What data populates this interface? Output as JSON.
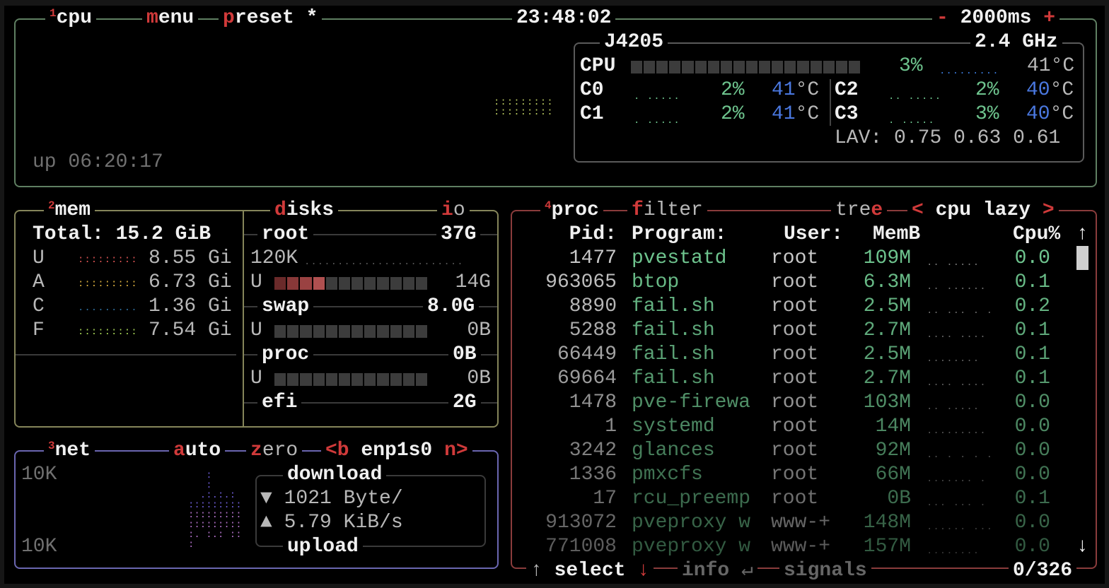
{
  "cpu": {
    "number": "1",
    "title": "cpu",
    "menu_hotkey": "m",
    "menu_rest": "enu",
    "preset_hotkey": "p",
    "preset_rest": "reset *",
    "clock": "23:48:02",
    "minus": "-",
    "interval": "2000ms",
    "plus": "+",
    "uptime": "up 06:20:17",
    "model": "J4205",
    "freq": "2.4 GHz",
    "total_label": "CPU",
    "total_pct": "3%",
    "total_temp": "41°C",
    "total_usage_fraction": 0.03,
    "cores": [
      {
        "label": "C0",
        "pct": "2%",
        "temp": "41",
        "unit": "°C"
      },
      {
        "label": "C1",
        "pct": "2%",
        "temp": "41",
        "unit": "°C"
      },
      {
        "label": "C2",
        "pct": "2%",
        "temp": "40",
        "unit": "°C"
      },
      {
        "label": "C3",
        "pct": "3%",
        "temp": "40",
        "unit": "°C"
      }
    ],
    "lav_label": "LAV:",
    "lav": [
      "0.75",
      "0.63",
      "0.61"
    ]
  },
  "mem": {
    "number": "2",
    "title": "mem",
    "total": "Total: 15.2 GiB",
    "rows": [
      {
        "label": "U",
        "value": "8.55 Gi",
        "color": "#e05555"
      },
      {
        "label": "A",
        "value": "6.73 Gi",
        "color": "#e0b440"
      },
      {
        "label": "C",
        "value": "1.36 Gi",
        "color": "#2e6e9e"
      },
      {
        "label": "F",
        "value": "7.54 Gi",
        "color": "#a8d858"
      }
    ]
  },
  "disks": {
    "hotkey": "d",
    "title_rest": "isks",
    "io_hotkey": "i",
    "io_rest": "o",
    "items": [
      {
        "name": "root",
        "size": "37G",
        "io": "120K",
        "used_label": "U",
        "used": "14G",
        "used_fraction": 0.33
      },
      {
        "name": "swap",
        "size": "8.0G",
        "used_label": "U",
        "used": "0B",
        "used_fraction": 0
      },
      {
        "name": "proc",
        "size": "0B",
        "used_label": "U",
        "used": "0B",
        "used_fraction": 0
      },
      {
        "name": "efi",
        "size": "2G"
      }
    ]
  },
  "net": {
    "number": "3",
    "title": "net",
    "auto_hotkey": "a",
    "auto_rest": "uto",
    "zero_hotkey": "z",
    "zero_rest": "ero",
    "prev": "<b",
    "iface": "enp1s0",
    "next": "n>",
    "scale_top": "10K",
    "scale_bottom": "10K",
    "download_label": "download",
    "download_arrow": "▼",
    "download": "1021 Byte/",
    "upload_arrow": "▲",
    "upload": "5.79 KiB/s",
    "upload_label": "upload"
  },
  "proc": {
    "number": "4",
    "title": "proc",
    "filter_hotkey": "f",
    "filter_rest": "ilter",
    "tree_rest": "tre",
    "tree_hotkey": "e",
    "sort_prev": "<",
    "sort": "cpu lazy",
    "sort_next": ">",
    "headers": {
      "pid": "Pid:",
      "program": "Program:",
      "user": "User:",
      "mem": "MemB",
      "cpu": "Cpu%"
    },
    "scroll_up": "↑",
    "scroll_down": "↓",
    "rows": [
      {
        "pid": "1477",
        "program": "pvestatd",
        "user": "root",
        "mem": "109M",
        "cpu": "0.0"
      },
      {
        "pid": "963065",
        "program": "btop",
        "user": "root",
        "mem": "6.3M",
        "cpu": "0.1"
      },
      {
        "pid": "8890",
        "program": "fail.sh",
        "user": "root",
        "mem": "2.5M",
        "cpu": "0.2"
      },
      {
        "pid": "5288",
        "program": "fail.sh",
        "user": "root",
        "mem": "2.7M",
        "cpu": "0.1"
      },
      {
        "pid": "66449",
        "program": "fail.sh",
        "user": "root",
        "mem": "2.5M",
        "cpu": "0.1"
      },
      {
        "pid": "69664",
        "program": "fail.sh",
        "user": "root",
        "mem": "2.7M",
        "cpu": "0.1"
      },
      {
        "pid": "1478",
        "program": "pve-firewa",
        "user": "root",
        "mem": "103M",
        "cpu": "0.0"
      },
      {
        "pid": "1",
        "program": "systemd",
        "user": "root",
        "mem": "14M",
        "cpu": "0.0"
      },
      {
        "pid": "3242",
        "program": "glances",
        "user": "root",
        "mem": "92M",
        "cpu": "0.0"
      },
      {
        "pid": "1336",
        "program": "pmxcfs",
        "user": "root",
        "mem": "66M",
        "cpu": "0.0"
      },
      {
        "pid": "17",
        "program": "rcu_preemp",
        "user": "root",
        "mem": "0B",
        "cpu": "0.1"
      },
      {
        "pid": "913072",
        "program": "pveproxy w",
        "user": "www-+",
        "mem": "148M",
        "cpu": "0.0"
      },
      {
        "pid": "771008",
        "program": "pveproxy w",
        "user": "www-+",
        "mem": "157M",
        "cpu": "0.0"
      }
    ],
    "footer": {
      "up": "↑",
      "select": "select",
      "down": "↓",
      "info": "info",
      "enter": "↵",
      "signals": "signals",
      "count": "0/326"
    }
  },
  "colors": {
    "cpu_border": "#5f7f62",
    "mem_border": "#85855a",
    "net_border": "#6a66b0",
    "proc_border": "#8a3c3c",
    "hotkey": "#d03a3a",
    "proc_name": "#6ec48e",
    "temp": "#4a78e0"
  }
}
